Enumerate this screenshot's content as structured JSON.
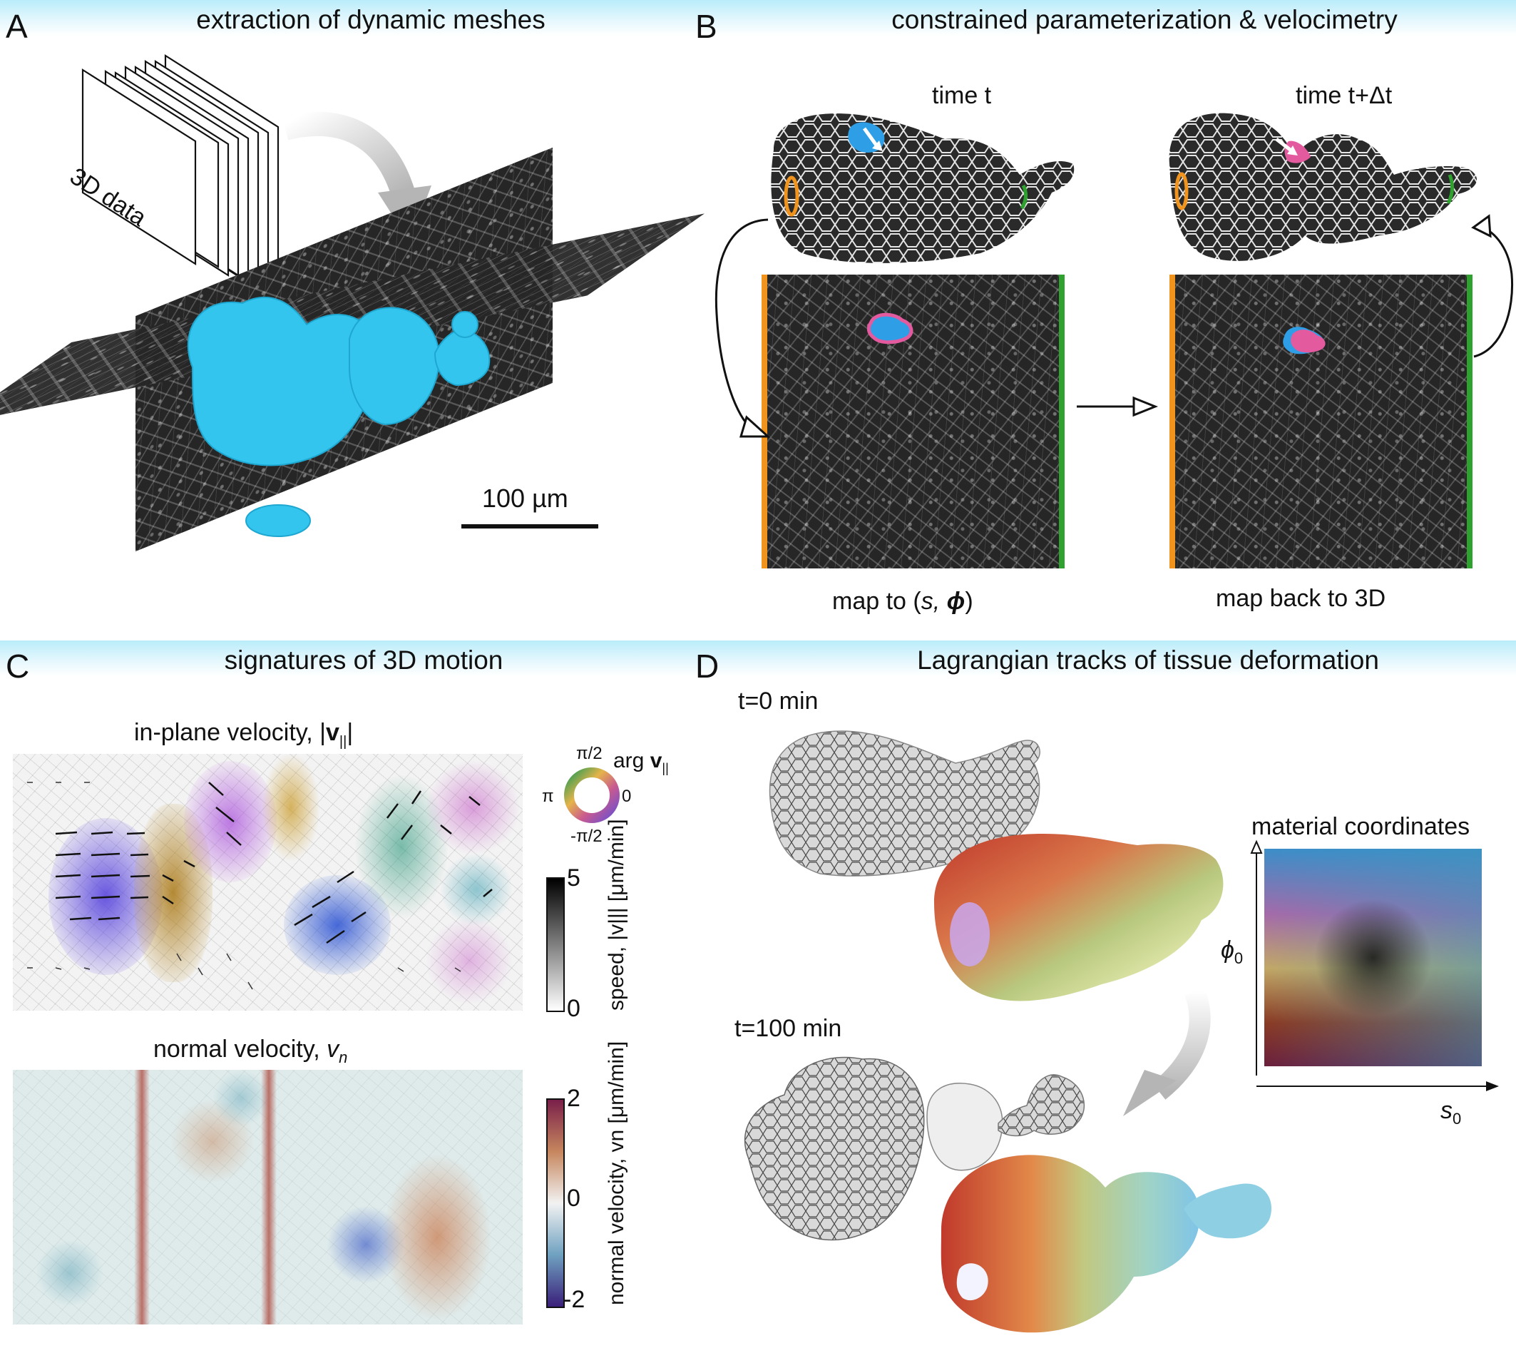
{
  "panels": {
    "a": {
      "letter": "A",
      "title": "extraction of dynamic meshes",
      "stack_label": "3D data",
      "scalebar_label": "100 µm"
    },
    "b": {
      "letter": "B",
      "title": "constrained parameterization & velocimetry",
      "time_left": "time t",
      "time_right": "time t+Δt",
      "map_to_prefix": "map to (",
      "map_to_s": "s,",
      "map_to_phi": "ϕ",
      "map_to_suffix": ")",
      "map_back": "map back to 3D"
    },
    "c": {
      "letter": "C",
      "title": "signatures of 3D motion",
      "inplane_prefix": "in-plane velocity,  |",
      "inplane_v": "v",
      "inplane_sub": "||",
      "inplane_suffix": "|",
      "wheel_top": "π/2",
      "wheel_left": "π",
      "wheel_right": "0",
      "wheel_bottom": "-π/2",
      "wheel_arg": "arg ",
      "wheel_v": "v",
      "wheel_sub": "||",
      "speed_max": "5",
      "speed_min": "0",
      "speed_label": "speed, |v||| [μm/min]",
      "normal_prefix": "normal velocity,  ",
      "normal_v": "v",
      "normal_sub": "n",
      "nv_max": "2",
      "nv_mid": "0",
      "nv_min": "-2",
      "nv_label": "normal velocity, vn [μm/min]"
    },
    "d": {
      "letter": "D",
      "title": "Lagrangian tracks of tissue deformation",
      "t0": "t=0 min",
      "t100": "t=100 min",
      "material_title": "material coordinates",
      "axis_y": "ϕ",
      "axis_y_sub": "0",
      "axis_x": "s",
      "axis_x_sub": "0"
    }
  },
  "colors": {
    "header_band": "#bdeefb",
    "mesh_blue": "#33c5ee",
    "orange_boundary": "#f0941d",
    "green_boundary": "#2ea12e",
    "cell_blue": "#2e9fe6",
    "cell_pink": "#e35a9f"
  }
}
